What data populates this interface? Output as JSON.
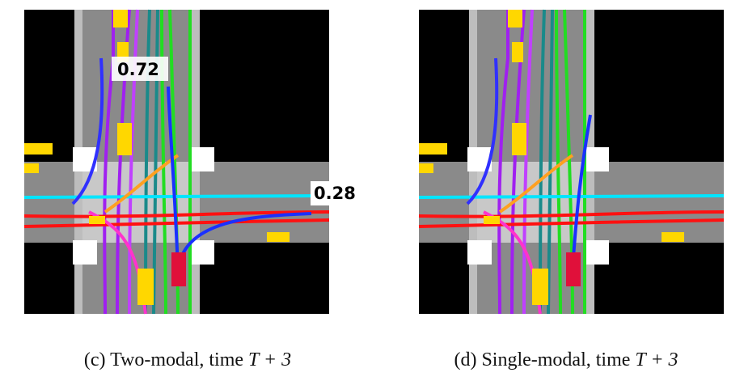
{
  "panels": [
    {
      "caption": "(c) Two-modal, time",
      "math": "T + 3",
      "annotations": [
        "0.72",
        "0.28"
      ]
    },
    {
      "caption": "(d) Single-modal, time",
      "math": "T + 3"
    }
  ]
}
